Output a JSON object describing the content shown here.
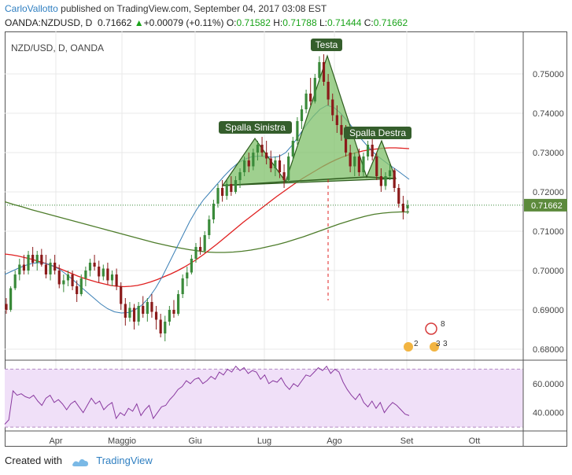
{
  "header": {
    "author": "CarloVallotto",
    "published_text": "published on TradingView.com, September 04, 2017 03:08 EST",
    "symbol": "OANDA:NZDUSD, D",
    "last": "0.71662",
    "change": "+0.00079 (+0.11%)",
    "o_label": "O:",
    "o_value": "0.71582",
    "h_label": "H:",
    "h_value": "0.71788",
    "l_label": "L:",
    "l_value": "0.71444",
    "c_label": "C:",
    "c_value": "0.71662"
  },
  "footer": {
    "created_with": "Created with",
    "brand": "TradingView"
  },
  "colors": {
    "up": "#3a8a3a",
    "down": "#8b1a1a",
    "ema_red": "#e02020",
    "ma_green": "#4d7c2a",
    "ma_blue": "#3a7fb5",
    "pattern_fill": "#7fc06a",
    "rsi_line": "#8a3aa0",
    "rsi_band": "#f0e0f8",
    "price_tag": "#5c8a3c"
  },
  "chart_data": [
    {
      "type": "candlestick",
      "title": "NZD/USD, D, OANDA",
      "x_tick_labels": [
        "Apr",
        "Maggio",
        "Giu",
        "Lug",
        "Ago",
        "Set",
        "Ott"
      ],
      "y_tick_labels": [
        "0.75000",
        "0.74000",
        "0.73000",
        "0.72000",
        "0.71000",
        "0.70000",
        "0.69000",
        "0.68000"
      ],
      "ylim": [
        0.6768,
        0.7588
      ],
      "last_price_label": "0.71662",
      "annotations": [
        "Testa",
        "Spalla Sinistra",
        "Spalla Destra"
      ],
      "event_markers": [
        "8",
        "2",
        "3",
        "3"
      ],
      "grid": true,
      "candles": [
        {
          "o": 0.6915,
          "h": 0.693,
          "l": 0.689,
          "c": 0.69
        },
        {
          "o": 0.69,
          "h": 0.696,
          "l": 0.6895,
          "c": 0.6955
        },
        {
          "o": 0.6955,
          "h": 0.7,
          "l": 0.695,
          "c": 0.699
        },
        {
          "o": 0.699,
          "h": 0.703,
          "l": 0.6975,
          "c": 0.7015
        },
        {
          "o": 0.7015,
          "h": 0.704,
          "l": 0.699,
          "c": 0.7
        },
        {
          "o": 0.7,
          "h": 0.705,
          "l": 0.699,
          "c": 0.704
        },
        {
          "o": 0.704,
          "h": 0.706,
          "l": 0.701,
          "c": 0.702
        },
        {
          "o": 0.702,
          "h": 0.705,
          "l": 0.7,
          "c": 0.704
        },
        {
          "o": 0.704,
          "h": 0.7055,
          "l": 0.701,
          "c": 0.7015
        },
        {
          "o": 0.7015,
          "h": 0.704,
          "l": 0.698,
          "c": 0.699
        },
        {
          "o": 0.699,
          "h": 0.703,
          "l": 0.6975,
          "c": 0.702
        },
        {
          "o": 0.702,
          "h": 0.704,
          "l": 0.699,
          "c": 0.7
        },
        {
          "o": 0.7,
          "h": 0.7015,
          "l": 0.6955,
          "c": 0.6965
        },
        {
          "o": 0.6965,
          "h": 0.699,
          "l": 0.6945,
          "c": 0.6975
        },
        {
          "o": 0.6975,
          "h": 0.7,
          "l": 0.696,
          "c": 0.699
        },
        {
          "o": 0.699,
          "h": 0.7,
          "l": 0.695,
          "c": 0.696
        },
        {
          "o": 0.696,
          "h": 0.6975,
          "l": 0.692,
          "c": 0.694
        },
        {
          "o": 0.694,
          "h": 0.699,
          "l": 0.6935,
          "c": 0.698
        },
        {
          "o": 0.698,
          "h": 0.701,
          "l": 0.696,
          "c": 0.7
        },
        {
          "o": 0.7,
          "h": 0.703,
          "l": 0.6985,
          "c": 0.702
        },
        {
          "o": 0.702,
          "h": 0.704,
          "l": 0.7,
          "c": 0.701
        },
        {
          "o": 0.701,
          "h": 0.7025,
          "l": 0.697,
          "c": 0.6985
        },
        {
          "o": 0.6985,
          "h": 0.7015,
          "l": 0.6975,
          "c": 0.7005
        },
        {
          "o": 0.7005,
          "h": 0.702,
          "l": 0.6965,
          "c": 0.6975
        },
        {
          "o": 0.6975,
          "h": 0.7,
          "l": 0.696,
          "c": 0.699
        },
        {
          "o": 0.699,
          "h": 0.7005,
          "l": 0.695,
          "c": 0.696
        },
        {
          "o": 0.696,
          "h": 0.697,
          "l": 0.69,
          "c": 0.6915
        },
        {
          "o": 0.6915,
          "h": 0.693,
          "l": 0.686,
          "c": 0.688
        },
        {
          "o": 0.688,
          "h": 0.692,
          "l": 0.687,
          "c": 0.6905
        },
        {
          "o": 0.6905,
          "h": 0.6915,
          "l": 0.685,
          "c": 0.687
        },
        {
          "o": 0.687,
          "h": 0.692,
          "l": 0.686,
          "c": 0.691
        },
        {
          "o": 0.691,
          "h": 0.6935,
          "l": 0.688,
          "c": 0.689
        },
        {
          "o": 0.689,
          "h": 0.693,
          "l": 0.687,
          "c": 0.692
        },
        {
          "o": 0.692,
          "h": 0.694,
          "l": 0.688,
          "c": 0.6895
        },
        {
          "o": 0.6895,
          "h": 0.691,
          "l": 0.685,
          "c": 0.6875
        },
        {
          "o": 0.6875,
          "h": 0.689,
          "l": 0.683,
          "c": 0.684
        },
        {
          "o": 0.684,
          "h": 0.6885,
          "l": 0.682,
          "c": 0.687
        },
        {
          "o": 0.687,
          "h": 0.691,
          "l": 0.686,
          "c": 0.69
        },
        {
          "o": 0.69,
          "h": 0.6925,
          "l": 0.688,
          "c": 0.689
        },
        {
          "o": 0.689,
          "h": 0.695,
          "l": 0.6885,
          "c": 0.694
        },
        {
          "o": 0.694,
          "h": 0.699,
          "l": 0.693,
          "c": 0.698
        },
        {
          "o": 0.698,
          "h": 0.701,
          "l": 0.696,
          "c": 0.6995
        },
        {
          "o": 0.6995,
          "h": 0.704,
          "l": 0.699,
          "c": 0.703
        },
        {
          "o": 0.703,
          "h": 0.707,
          "l": 0.702,
          "c": 0.706
        },
        {
          "o": 0.706,
          "h": 0.7085,
          "l": 0.704,
          "c": 0.705
        },
        {
          "o": 0.705,
          "h": 0.71,
          "l": 0.7045,
          "c": 0.709
        },
        {
          "o": 0.709,
          "h": 0.714,
          "l": 0.708,
          "c": 0.713
        },
        {
          "o": 0.713,
          "h": 0.718,
          "l": 0.712,
          "c": 0.717
        },
        {
          "o": 0.717,
          "h": 0.722,
          "l": 0.716,
          "c": 0.721
        },
        {
          "o": 0.721,
          "h": 0.723,
          "l": 0.7175,
          "c": 0.719
        },
        {
          "o": 0.719,
          "h": 0.723,
          "l": 0.718,
          "c": 0.722
        },
        {
          "o": 0.722,
          "h": 0.724,
          "l": 0.719,
          "c": 0.72
        },
        {
          "o": 0.72,
          "h": 0.724,
          "l": 0.7195,
          "c": 0.723
        },
        {
          "o": 0.723,
          "h": 0.726,
          "l": 0.721,
          "c": 0.725
        },
        {
          "o": 0.725,
          "h": 0.729,
          "l": 0.724,
          "c": 0.728
        },
        {
          "o": 0.728,
          "h": 0.73,
          "l": 0.725,
          "c": 0.7265
        },
        {
          "o": 0.7265,
          "h": 0.731,
          "l": 0.7255,
          "c": 0.73
        },
        {
          "o": 0.73,
          "h": 0.733,
          "l": 0.728,
          "c": 0.732
        },
        {
          "o": 0.732,
          "h": 0.734,
          "l": 0.729,
          "c": 0.73
        },
        {
          "o": 0.73,
          "h": 0.733,
          "l": 0.727,
          "c": 0.7285
        },
        {
          "o": 0.7285,
          "h": 0.7305,
          "l": 0.725,
          "c": 0.726
        },
        {
          "o": 0.726,
          "h": 0.729,
          "l": 0.724,
          "c": 0.728
        },
        {
          "o": 0.728,
          "h": 0.7295,
          "l": 0.7235,
          "c": 0.725
        },
        {
          "o": 0.725,
          "h": 0.727,
          "l": 0.721,
          "c": 0.723
        },
        {
          "o": 0.723,
          "h": 0.73,
          "l": 0.7225,
          "c": 0.729
        },
        {
          "o": 0.729,
          "h": 0.734,
          "l": 0.728,
          "c": 0.733
        },
        {
          "o": 0.733,
          "h": 0.739,
          "l": 0.732,
          "c": 0.738
        },
        {
          "o": 0.738,
          "h": 0.742,
          "l": 0.736,
          "c": 0.741
        },
        {
          "o": 0.741,
          "h": 0.746,
          "l": 0.74,
          "c": 0.745
        },
        {
          "o": 0.745,
          "h": 0.749,
          "l": 0.742,
          "c": 0.743
        },
        {
          "o": 0.743,
          "h": 0.75,
          "l": 0.7425,
          "c": 0.749
        },
        {
          "o": 0.749,
          "h": 0.7545,
          "l": 0.748,
          "c": 0.753
        },
        {
          "o": 0.753,
          "h": 0.755,
          "l": 0.747,
          "c": 0.748
        },
        {
          "o": 0.748,
          "h": 0.75,
          "l": 0.742,
          "c": 0.7435
        },
        {
          "o": 0.7435,
          "h": 0.745,
          "l": 0.738,
          "c": 0.7395
        },
        {
          "o": 0.7395,
          "h": 0.742,
          "l": 0.735,
          "c": 0.737
        },
        {
          "o": 0.737,
          "h": 0.7395,
          "l": 0.733,
          "c": 0.7345
        },
        {
          "o": 0.7345,
          "h": 0.737,
          "l": 0.729,
          "c": 0.73
        },
        {
          "o": 0.73,
          "h": 0.732,
          "l": 0.725,
          "c": 0.7265
        },
        {
          "o": 0.7265,
          "h": 0.73,
          "l": 0.724,
          "c": 0.729
        },
        {
          "o": 0.729,
          "h": 0.731,
          "l": 0.724,
          "c": 0.725
        },
        {
          "o": 0.725,
          "h": 0.73,
          "l": 0.724,
          "c": 0.729
        },
        {
          "o": 0.729,
          "h": 0.733,
          "l": 0.728,
          "c": 0.732
        },
        {
          "o": 0.732,
          "h": 0.7335,
          "l": 0.728,
          "c": 0.729
        },
        {
          "o": 0.729,
          "h": 0.73,
          "l": 0.723,
          "c": 0.724
        },
        {
          "o": 0.724,
          "h": 0.726,
          "l": 0.72,
          "c": 0.7215
        },
        {
          "o": 0.7215,
          "h": 0.725,
          "l": 0.7205,
          "c": 0.724
        },
        {
          "o": 0.724,
          "h": 0.727,
          "l": 0.723,
          "c": 0.7255
        },
        {
          "o": 0.7255,
          "h": 0.726,
          "l": 0.72,
          "c": 0.721
        },
        {
          "o": 0.721,
          "h": 0.722,
          "l": 0.716,
          "c": 0.717
        },
        {
          "o": 0.717,
          "h": 0.719,
          "l": 0.713,
          "c": 0.715
        },
        {
          "o": 0.7158,
          "h": 0.7179,
          "l": 0.7144,
          "c": 0.7166
        }
      ],
      "ema_red": [
        0.7042,
        0.704,
        0.7037,
        0.7033,
        0.7029,
        0.7024,
        0.7019,
        0.7013,
        0.7007,
        0.7,
        0.6993,
        0.6986,
        0.698,
        0.6975,
        0.697,
        0.6966,
        0.6962,
        0.696,
        0.6959,
        0.696,
        0.6962,
        0.6966,
        0.6971,
        0.6977,
        0.6984,
        0.6991,
        0.6999,
        0.7008,
        0.7018,
        0.7029,
        0.7041,
        0.7054,
        0.7067,
        0.7081,
        0.7095,
        0.7109,
        0.7123,
        0.7136,
        0.7149,
        0.7162,
        0.7175,
        0.7188,
        0.72,
        0.7212,
        0.7224,
        0.7235,
        0.7245,
        0.7255,
        0.7265,
        0.7274,
        0.7282,
        0.7289,
        0.7295,
        0.73,
        0.7304,
        0.7307,
        0.7309,
        0.7311,
        0.7312,
        0.7312,
        0.7311,
        0.731
      ],
      "ma_green": [
        0.7175,
        0.7168,
        0.7162,
        0.7155,
        0.7149,
        0.7143,
        0.7137,
        0.7131,
        0.7125,
        0.7119,
        0.7113,
        0.7107,
        0.7101,
        0.7095,
        0.7089,
        0.7083,
        0.7077,
        0.7071,
        0.7066,
        0.7061,
        0.7057,
        0.7053,
        0.705,
        0.7047,
        0.7046,
        0.7046,
        0.7047,
        0.7049,
        0.7052,
        0.7056,
        0.7061,
        0.7066,
        0.7072,
        0.7079,
        0.7086,
        0.7094,
        0.7102,
        0.711,
        0.7118,
        0.7125,
        0.7132,
        0.7138,
        0.7143,
        0.7146,
        0.7148,
        0.7149,
        0.7149
      ],
      "ma_blue": [
        0.699,
        0.6998,
        0.7006,
        0.7013,
        0.7018,
        0.702,
        0.7018,
        0.7012,
        0.7003,
        0.699,
        0.6976,
        0.696,
        0.6945,
        0.693,
        0.6915,
        0.6903,
        0.6895,
        0.6892,
        0.6893,
        0.69,
        0.6912,
        0.693,
        0.6955,
        0.6985,
        0.702,
        0.7055,
        0.709,
        0.7125,
        0.7155,
        0.718,
        0.72,
        0.722,
        0.724,
        0.7258,
        0.7273,
        0.7283,
        0.7289,
        0.7291,
        0.729,
        0.7288,
        0.729,
        0.73,
        0.732,
        0.7345,
        0.737,
        0.7392,
        0.741,
        0.742,
        0.7415,
        0.74,
        0.738,
        0.7358,
        0.7335,
        0.7315,
        0.7297,
        0.7283,
        0.727,
        0.7258,
        0.7245,
        0.7232
      ]
    },
    {
      "type": "line",
      "title": "",
      "y_tick_labels": [
        "60.0000",
        "40.0000"
      ],
      "ylim": [
        29,
        74
      ],
      "band": [
        30,
        70
      ],
      "values": [
        32,
        35,
        55,
        52,
        53,
        51,
        50,
        52,
        48,
        45,
        50,
        52,
        47,
        49,
        46,
        42,
        46,
        48,
        44,
        40,
        45,
        50,
        46,
        48,
        42,
        45,
        47,
        36,
        40,
        38,
        43,
        41,
        46,
        38,
        42,
        45,
        36,
        40,
        44,
        45,
        49,
        52,
        56,
        58,
        62,
        60,
        63,
        64,
        60,
        62,
        65,
        63,
        68,
        66,
        70,
        68,
        72,
        69,
        71,
        67,
        69,
        68,
        63,
        66,
        60,
        62,
        61,
        64,
        59,
        56,
        60,
        58,
        62,
        66,
        65,
        68,
        71,
        69,
        72,
        67,
        70,
        68,
        61,
        56,
        52,
        49,
        53,
        47,
        44,
        48,
        43,
        47,
        40,
        44,
        47,
        45,
        42,
        39,
        38
      ]
    }
  ]
}
